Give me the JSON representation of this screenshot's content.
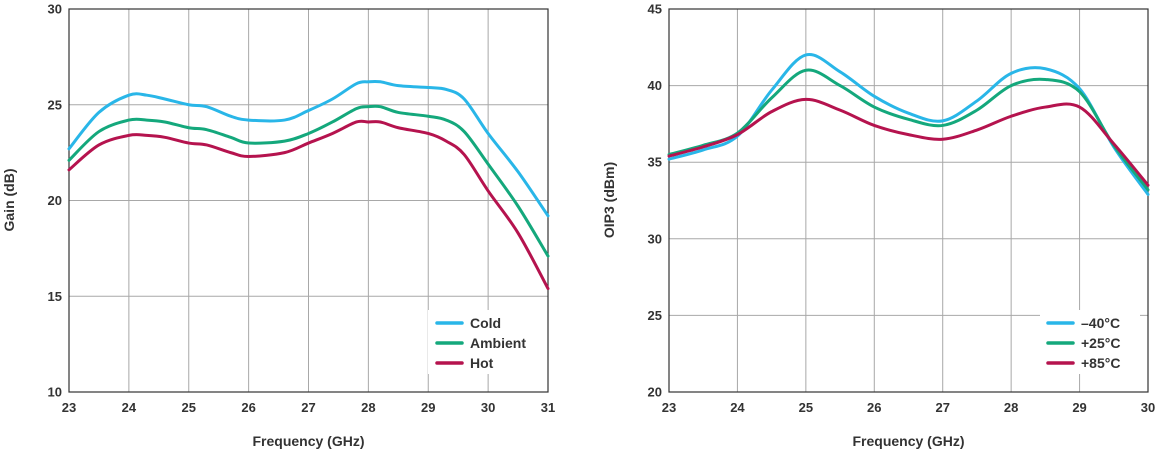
{
  "chart_data": [
    {
      "type": "line",
      "xlabel": "Frequency (GHz)",
      "ylabel": "Gain (dB)",
      "xlim": [
        23,
        31
      ],
      "ylim": [
        10,
        30
      ],
      "xticks": [
        "23",
        "24",
        "25",
        "26",
        "27",
        "28",
        "29",
        "30",
        "31"
      ],
      "yticks": [
        "10",
        "15",
        "20",
        "25",
        "30"
      ],
      "grid": true,
      "legend_position": "bottom-right",
      "series": [
        {
          "name": "Cold",
          "color": "#29b6e8",
          "x": [
            23,
            23.5,
            24,
            24.3,
            24.6,
            25,
            25.3,
            25.7,
            26,
            26.6,
            27,
            27.4,
            27.8,
            28,
            28.2,
            28.5,
            29,
            29.3,
            29.6,
            30,
            30.5,
            31
          ],
          "y": [
            22.7,
            24.6,
            25.5,
            25.5,
            25.3,
            25.0,
            24.9,
            24.4,
            24.2,
            24.2,
            24.7,
            25.3,
            26.1,
            26.2,
            26.2,
            26.0,
            25.9,
            25.8,
            25.3,
            23.5,
            21.5,
            19.2
          ]
        },
        {
          "name": "Ambient",
          "color": "#14a87c",
          "x": [
            23,
            23.5,
            24,
            24.3,
            24.6,
            25,
            25.3,
            25.7,
            26,
            26.6,
            27,
            27.4,
            27.8,
            28,
            28.2,
            28.5,
            29,
            29.3,
            29.6,
            30,
            30.5,
            31
          ],
          "y": [
            22.1,
            23.6,
            24.2,
            24.2,
            24.1,
            23.8,
            23.7,
            23.3,
            23.0,
            23.1,
            23.5,
            24.1,
            24.8,
            24.9,
            24.9,
            24.6,
            24.4,
            24.2,
            23.6,
            21.9,
            19.7,
            17.1
          ]
        },
        {
          "name": "Hot",
          "color": "#b5134e",
          "x": [
            23,
            23.5,
            24,
            24.3,
            24.6,
            25,
            25.3,
            25.7,
            26,
            26.6,
            27,
            27.4,
            27.8,
            28,
            28.2,
            28.5,
            29,
            29.3,
            29.6,
            30,
            30.5,
            31
          ],
          "y": [
            21.6,
            22.9,
            23.4,
            23.4,
            23.3,
            23.0,
            22.9,
            22.5,
            22.3,
            22.5,
            23.0,
            23.5,
            24.1,
            24.1,
            24.1,
            23.8,
            23.5,
            23.1,
            22.4,
            20.5,
            18.3,
            15.4
          ]
        }
      ]
    },
    {
      "type": "line",
      "xlabel": "Frequency (GHz)",
      "ylabel": "OIP3 (dBm)",
      "xlim": [
        23,
        30
      ],
      "ylim": [
        20,
        45
      ],
      "xticks": [
        "23",
        "24",
        "25",
        "26",
        "27",
        "28",
        "29",
        "30"
      ],
      "yticks": [
        "20",
        "25",
        "30",
        "35",
        "40",
        "45"
      ],
      "grid": true,
      "legend_position": "bottom-right",
      "series": [
        {
          "name": "–40°C",
          "color": "#29b6e8",
          "x": [
            23,
            23.5,
            24,
            24.5,
            25,
            25.5,
            26,
            26.5,
            27,
            27.5,
            28,
            28.5,
            29,
            29.5,
            30
          ],
          "y": [
            35.2,
            35.8,
            36.7,
            39.7,
            42.0,
            40.9,
            39.3,
            38.2,
            37.7,
            39.0,
            40.8,
            41.1,
            39.8,
            36.0,
            32.9
          ]
        },
        {
          "name": "+25°C",
          "color": "#14a87c",
          "x": [
            23,
            23.5,
            24,
            24.5,
            25,
            25.5,
            26,
            26.5,
            27,
            27.5,
            28,
            28.5,
            29,
            29.5,
            30
          ],
          "y": [
            35.5,
            36.1,
            36.9,
            39.2,
            41.0,
            40.0,
            38.6,
            37.8,
            37.4,
            38.4,
            40.0,
            40.4,
            39.6,
            36.1,
            33.2
          ]
        },
        {
          "name": "+85°C",
          "color": "#b5134e",
          "x": [
            23,
            23.5,
            24,
            24.5,
            25,
            25.5,
            26,
            26.5,
            27,
            27.5,
            28,
            28.5,
            29,
            29.5,
            30
          ],
          "y": [
            35.4,
            36.0,
            36.8,
            38.3,
            39.1,
            38.4,
            37.4,
            36.8,
            36.5,
            37.1,
            38.0,
            38.6,
            38.6,
            36.2,
            33.5
          ]
        }
      ]
    }
  ]
}
